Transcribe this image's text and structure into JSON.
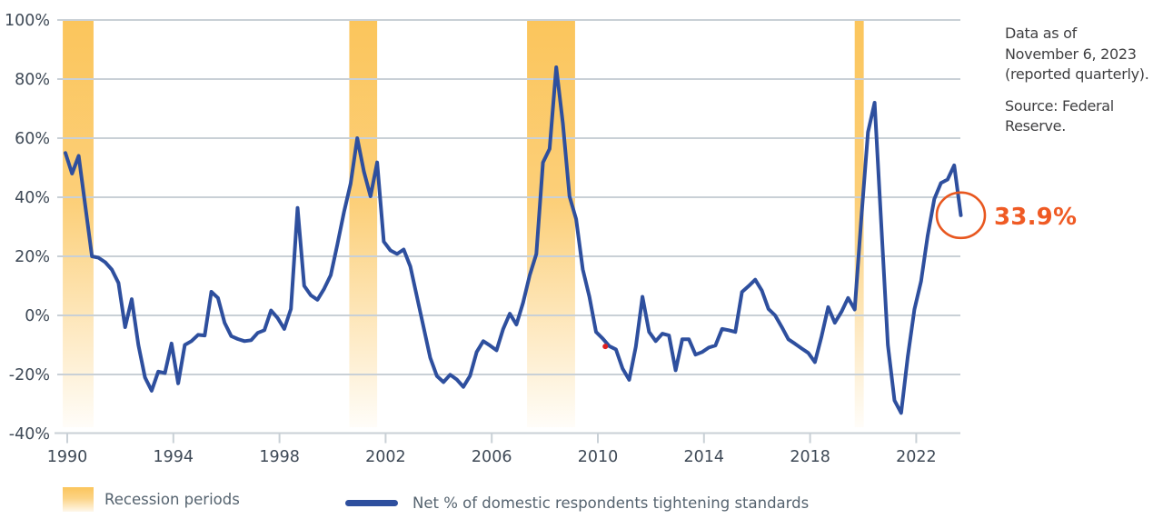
{
  "chart_data": {
    "type": "line",
    "title": "",
    "xlabel": "",
    "ylabel": "",
    "ylim": [
      -40,
      100
    ],
    "x_range": [
      1990,
      2023.75
    ],
    "grid": "horizontal",
    "frequency": "quarterly",
    "x_ticks": [
      "1990",
      "1994",
      "1998",
      "2002",
      "2006",
      "2010",
      "2014",
      "2018",
      "2022"
    ],
    "y_ticks": [
      {
        "value": 100,
        "label": "100%"
      },
      {
        "value": 80,
        "label": "80%"
      },
      {
        "value": 60,
        "label": "60%"
      },
      {
        "value": 40,
        "label": "40%"
      },
      {
        "value": 20,
        "label": "20%"
      },
      {
        "value": 0,
        "label": "0%"
      },
      {
        "value": -20,
        "label": "-20%"
      },
      {
        "value": -40,
        "label": "-40%"
      }
    ],
    "series": [
      {
        "name": "Net % of domestic respondents tightening standards",
        "color": "#2e4f9e",
        "start_year": 1990,
        "step_years": 0.25,
        "values": [
          55,
          48,
          54,
          37,
          20,
          19.5,
          18,
          15.5,
          11,
          -4,
          5.5,
          -10,
          -21,
          -25.5,
          -19,
          -19.5,
          -9.5,
          -23,
          -10,
          -8.7,
          -6.6,
          -6.8,
          8,
          5.9,
          -2.5,
          -7,
          -8,
          -8.7,
          -8.4,
          -5.9,
          -5,
          1.7,
          -0.9,
          -4.6,
          2.2,
          36.4,
          10,
          6.8,
          5.3,
          9,
          13.6,
          24,
          35,
          44.6,
          60,
          48.7,
          40.3,
          51.8,
          25,
          22,
          20.8,
          22.3,
          16.6,
          6.3,
          -4,
          -14.3,
          -20.5,
          -22.6,
          -20.1,
          -21.7,
          -24.2,
          -20.5,
          -12.4,
          -8.7,
          -10.2,
          -11.8,
          -4.6,
          0.6,
          -3.1,
          4.3,
          13.6,
          20.8,
          51.8,
          56.4,
          84,
          65,
          40.3,
          32.6,
          15.6,
          6.3,
          -5.6,
          -7.8,
          -10.4,
          -11.5,
          -18,
          -21.8,
          -10.6,
          6.3,
          -5.6,
          -8.7,
          -6.2,
          -6.8,
          -18.6,
          -8.1,
          -8.1,
          -13.3,
          -12.4,
          -10.9,
          -10.2,
          -4.6,
          -5,
          -5.6,
          7.9,
          9.9,
          12.1,
          8.4,
          2.2,
          0,
          -3.9,
          -8.1,
          -9.6,
          -11.2,
          -12.7,
          -15.8,
          -7.1,
          2.8,
          -2.5,
          1.2,
          5.9,
          2,
          33,
          62,
          72,
          31,
          -10,
          -28.8,
          -33,
          -14,
          2,
          11.5,
          27,
          39.4,
          44.8,
          46,
          50.8,
          33.9
        ]
      }
    ],
    "recession_bands": [
      {
        "from": 1989.9,
        "to": 1991.06
      },
      {
        "from": 2000.7,
        "to": 2001.75
      },
      {
        "from": 2007.4,
        "to": 2009.21
      },
      {
        "from": 2019.75,
        "to": 2020.09
      }
    ],
    "outlier_dot": {
      "year": 2010.35,
      "value": -10.5,
      "color": "#e02020"
    },
    "annotation": {
      "value_label": "33.9%",
      "circle_year": 2023.75,
      "circle_value": 33.9,
      "color": "#e8571f"
    },
    "band_color": "#fbc55c",
    "gridline_color": "#c9d0d6",
    "tick_label_color": "#3e4956"
  },
  "side_note": {
    "data_as_of": "Data as of November 6, 2023 (reported quarterly).",
    "source": "Source: Federal Reserve."
  },
  "legend": {
    "recession_label": "Recession periods",
    "series_label": "Net % of domestic respondents tightening standards"
  }
}
